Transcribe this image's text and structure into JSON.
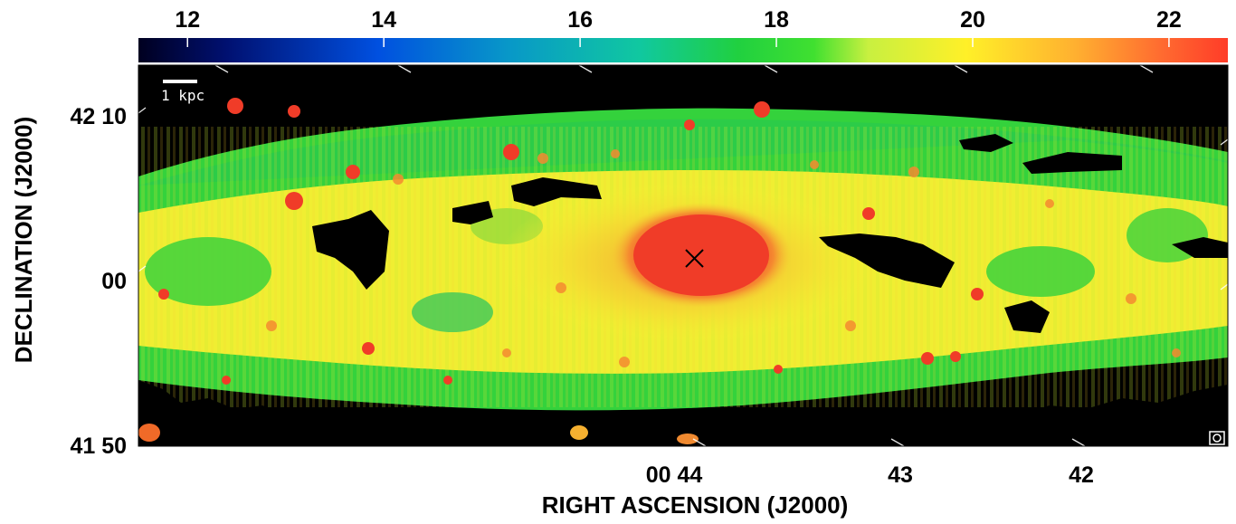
{
  "figure": {
    "colorbar": {
      "tick_labels": [
        "12",
        "14",
        "16",
        "18",
        "20",
        "22"
      ],
      "tick_values": [
        12,
        14,
        16,
        18,
        20,
        22
      ],
      "range": [
        11.5,
        22.6
      ]
    },
    "x_axis": {
      "title": "RIGHT ASCENSION (J2000)",
      "tick_labels": [
        "00 44",
        "43",
        "42"
      ]
    },
    "y_axis": {
      "title": "DECLINATION (J2000)",
      "tick_labels": [
        "42 10",
        "00",
        "41 50"
      ]
    },
    "scale_bar": {
      "label": "1 kpc"
    },
    "center_marker": {
      "icon": "x-cross-icon"
    },
    "beam_marker": {
      "icon": "beam-circle-icon"
    },
    "colors": {
      "background": "#000000",
      "core": "#f03c28",
      "disk": "#f5f032",
      "outer": "#28d23c"
    }
  }
}
